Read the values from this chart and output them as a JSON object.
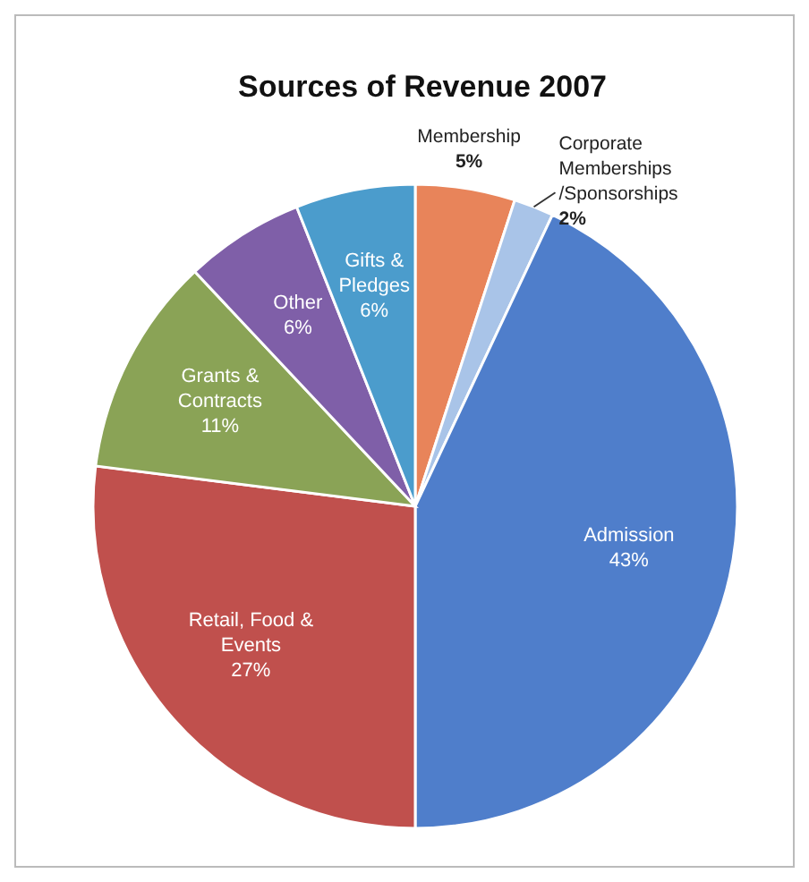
{
  "chart_data": {
    "type": "pie",
    "title": "Sources of Revenue 2007",
    "categories": [
      "Membership",
      "Corporate Memberships /Sponsorships",
      "Admission",
      "Retail, Food & Events",
      "Grants & Contracts",
      "Other",
      "Gifts & Pledges"
    ],
    "values": [
      5,
      2,
      43,
      27,
      11,
      6,
      6
    ],
    "value_labels": [
      "5%",
      "2%",
      "43%",
      "27%",
      "11%",
      "6%",
      "6%"
    ],
    "colors": [
      "#e8845a",
      "#a9c4e8",
      "#4f7ecb",
      "#c0504d",
      "#8aa356",
      "#7f5fa8",
      "#4b9ccc"
    ]
  }
}
